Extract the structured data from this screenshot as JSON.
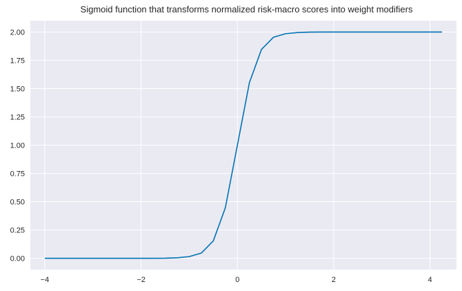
{
  "chart_data": {
    "type": "line",
    "title": "Sigmoid function that transforms normalized risk-macro scores into weight modifiers",
    "xlabel": "",
    "ylabel": "",
    "xlim": [
      -4.3,
      4.55
    ],
    "ylim": [
      -0.1,
      2.1
    ],
    "xticks": [
      -4,
      -2,
      0,
      2,
      4
    ],
    "xtick_labels": [
      "−4",
      "−2",
      "0",
      "2",
      "4"
    ],
    "yticks": [
      0,
      0.25,
      0.5,
      0.75,
      1.0,
      1.25,
      1.5,
      1.75,
      2.0
    ],
    "ytick_labels": [
      "0.00",
      "0.25",
      "0.50",
      "0.75",
      "1.00",
      "1.25",
      "1.50",
      "1.75",
      "2.00"
    ],
    "grid": true,
    "background_color": "#eaeaf2",
    "grid_color": "#ffffff",
    "series": [
      {
        "color": "#0072b2",
        "x": [
          -4.0,
          -3.75,
          -3.5,
          -3.25,
          -3.0,
          -2.75,
          -2.5,
          -2.25,
          -2.0,
          -1.75,
          -1.5,
          -1.25,
          -1.0,
          -0.75,
          -0.5,
          -0.25,
          0.0,
          0.25,
          0.5,
          0.75,
          1.0,
          1.25,
          1.5,
          1.75,
          2.0,
          2.25,
          2.5,
          2.75,
          3.0,
          3.25,
          3.5,
          3.75,
          4.0,
          4.25
        ],
        "y": [
          0.0,
          0.0,
          0.0,
          0.0,
          0.0,
          0.0,
          0.0,
          0.0,
          0.0,
          0.0,
          0.001,
          0.005,
          0.015,
          0.046,
          0.154,
          0.447,
          1.0,
          1.553,
          1.846,
          1.954,
          1.985,
          1.995,
          1.999,
          2.0,
          2.0,
          2.0,
          2.0,
          2.0,
          2.0,
          2.0,
          2.0,
          2.0,
          2.0,
          2.0
        ]
      }
    ]
  }
}
